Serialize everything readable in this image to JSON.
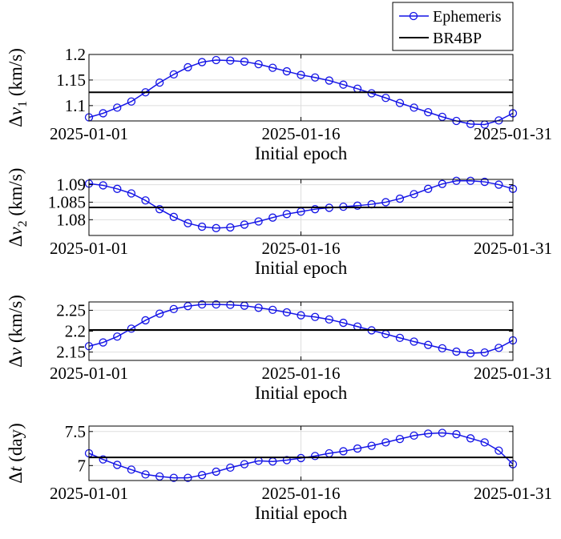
{
  "legend": {
    "ephemeris_label": "Ephemeris",
    "br4bp_label": "BR4BP"
  },
  "colors": {
    "ephemeris": "#1414e6",
    "br4bp": "#000000",
    "grid": "#dedede",
    "axes": "#000000"
  },
  "chart_data": [
    {
      "type": "line",
      "title": "",
      "xlabel": "Initial epoch",
      "ylabel_main": "Δ",
      "ylabel_var": "v",
      "ylabel_sub": "1",
      "ylabel_unit": " (km/s)",
      "xtick_labels": [
        "2025-01-01",
        "2025-01-16",
        "2025-01-31"
      ],
      "xticks": [
        0,
        15,
        30
      ],
      "xlim": [
        0,
        30
      ],
      "ylim": [
        1.07,
        1.2
      ],
      "yticks": [
        1.1,
        1.15,
        1.2
      ],
      "ytick_labels": [
        "1.1",
        "1.15",
        "1.2"
      ],
      "grid": true,
      "legend": "top-right",
      "series": [
        {
          "name": "Ephemeris",
          "x": [
            0,
            1,
            2,
            3,
            4,
            5,
            6,
            7,
            8,
            9,
            10,
            11,
            12,
            13,
            14,
            15,
            16,
            17,
            18,
            19,
            20,
            21,
            22,
            23,
            24,
            25,
            26,
            27,
            28,
            29,
            30
          ],
          "y": [
            1.077,
            1.085,
            1.096,
            1.108,
            1.126,
            1.145,
            1.161,
            1.175,
            1.185,
            1.189,
            1.188,
            1.186,
            1.181,
            1.174,
            1.167,
            1.16,
            1.155,
            1.149,
            1.141,
            1.133,
            1.124,
            1.115,
            1.105,
            1.096,
            1.087,
            1.078,
            1.07,
            1.064,
            1.063,
            1.071,
            1.085
          ]
        },
        {
          "name": "BR4BP",
          "x": [
            0,
            30
          ],
          "y": [
            1.126,
            1.126
          ]
        }
      ]
    },
    {
      "type": "line",
      "title": "",
      "xlabel": "Initial epoch",
      "ylabel_main": "Δ",
      "ylabel_var": "v",
      "ylabel_sub": "2",
      "ylabel_unit": " (km/s)",
      "xtick_labels": [
        "2025-01-01",
        "2025-01-16",
        "2025-01-31"
      ],
      "xticks": [
        0,
        15,
        30
      ],
      "xlim": [
        0,
        30
      ],
      "ylim": [
        1.0755,
        1.0915
      ],
      "yticks": [
        1.08,
        1.085,
        1.09
      ],
      "ytick_labels": [
        "1.08",
        "1.085",
        "1.09"
      ],
      "grid": true,
      "series": [
        {
          "name": "Ephemeris",
          "x": [
            0,
            1,
            2,
            3,
            4,
            5,
            6,
            7,
            8,
            9,
            10,
            11,
            12,
            13,
            14,
            15,
            16,
            17,
            18,
            19,
            20,
            21,
            22,
            23,
            24,
            25,
            26,
            27,
            28,
            29,
            30
          ],
          "y": [
            1.0903,
            1.0898,
            1.0888,
            1.0875,
            1.0855,
            1.083,
            1.0808,
            1.079,
            1.078,
            1.0776,
            1.0778,
            1.0786,
            1.0795,
            1.0806,
            1.0816,
            1.0823,
            1.083,
            1.0834,
            1.0837,
            1.084,
            1.0844,
            1.085,
            1.086,
            1.0873,
            1.0888,
            1.0902,
            1.0911,
            1.0911,
            1.0908,
            1.09,
            1.0888
          ]
        },
        {
          "name": "BR4BP",
          "x": [
            0,
            30
          ],
          "y": [
            1.0835,
            1.0835
          ]
        }
      ]
    },
    {
      "type": "line",
      "title": "",
      "xlabel": "Initial epoch",
      "ylabel_main": "Δ",
      "ylabel_var": "v",
      "ylabel_sub": "",
      "ylabel_unit": " (km/s)",
      "xtick_labels": [
        "2025-01-01",
        "2025-01-16",
        "2025-01-31"
      ],
      "xticks": [
        0,
        15,
        30
      ],
      "xlim": [
        0,
        30
      ],
      "ylim": [
        2.13,
        2.27
      ],
      "yticks": [
        2.15,
        2.2,
        2.25
      ],
      "ytick_labels": [
        "2.15",
        "2.2",
        "2.25"
      ],
      "grid": true,
      "series": [
        {
          "name": "Ephemeris",
          "x": [
            0,
            1,
            2,
            3,
            4,
            5,
            6,
            7,
            8,
            9,
            10,
            11,
            12,
            13,
            14,
            15,
            16,
            17,
            18,
            19,
            20,
            21,
            22,
            23,
            24,
            25,
            26,
            27,
            28,
            29,
            30
          ],
          "y": [
            2.164,
            2.173,
            2.187,
            2.206,
            2.226,
            2.242,
            2.253,
            2.26,
            2.264,
            2.264,
            2.263,
            2.261,
            2.256,
            2.251,
            2.245,
            2.238,
            2.234,
            2.228,
            2.22,
            2.211,
            2.202,
            2.193,
            2.184,
            2.175,
            2.167,
            2.159,
            2.151,
            2.147,
            2.149,
            2.16,
            2.178
          ]
        },
        {
          "name": "BR4BP",
          "x": [
            0,
            30
          ],
          "y": [
            2.203,
            2.203
          ]
        }
      ]
    },
    {
      "type": "line",
      "title": "",
      "xlabel": "Initial epoch",
      "ylabel_main": "Δ",
      "ylabel_var": "t",
      "ylabel_sub": "",
      "ylabel_unit": " (day)",
      "xtick_labels": [
        "2025-01-01",
        "2025-01-16",
        "2025-01-31"
      ],
      "xticks": [
        0,
        15,
        30
      ],
      "xlim": [
        0,
        30
      ],
      "ylim": [
        6.78,
        7.58
      ],
      "yticks": [
        7.0,
        7.5
      ],
      "ytick_labels": [
        "7",
        "7.5"
      ],
      "grid": true,
      "series": [
        {
          "name": "Ephemeris",
          "x": [
            0,
            1,
            2,
            3,
            4,
            5,
            6,
            7,
            8,
            9,
            10,
            11,
            12,
            13,
            14,
            15,
            16,
            17,
            18,
            19,
            20,
            21,
            22,
            23,
            24,
            25,
            26,
            27,
            28,
            29,
            30
          ],
          "y": [
            7.18,
            7.09,
            7.01,
            6.94,
            6.87,
            6.84,
            6.82,
            6.82,
            6.86,
            6.91,
            6.97,
            7.02,
            7.07,
            7.06,
            7.08,
            7.11,
            7.14,
            7.18,
            7.21,
            7.25,
            7.29,
            7.34,
            7.39,
            7.44,
            7.47,
            7.48,
            7.46,
            7.4,
            7.34,
            7.22,
            7.02
          ]
        },
        {
          "name": "BR4BP",
          "x": [
            0,
            30
          ],
          "y": [
            7.12,
            7.12
          ]
        }
      ]
    }
  ]
}
